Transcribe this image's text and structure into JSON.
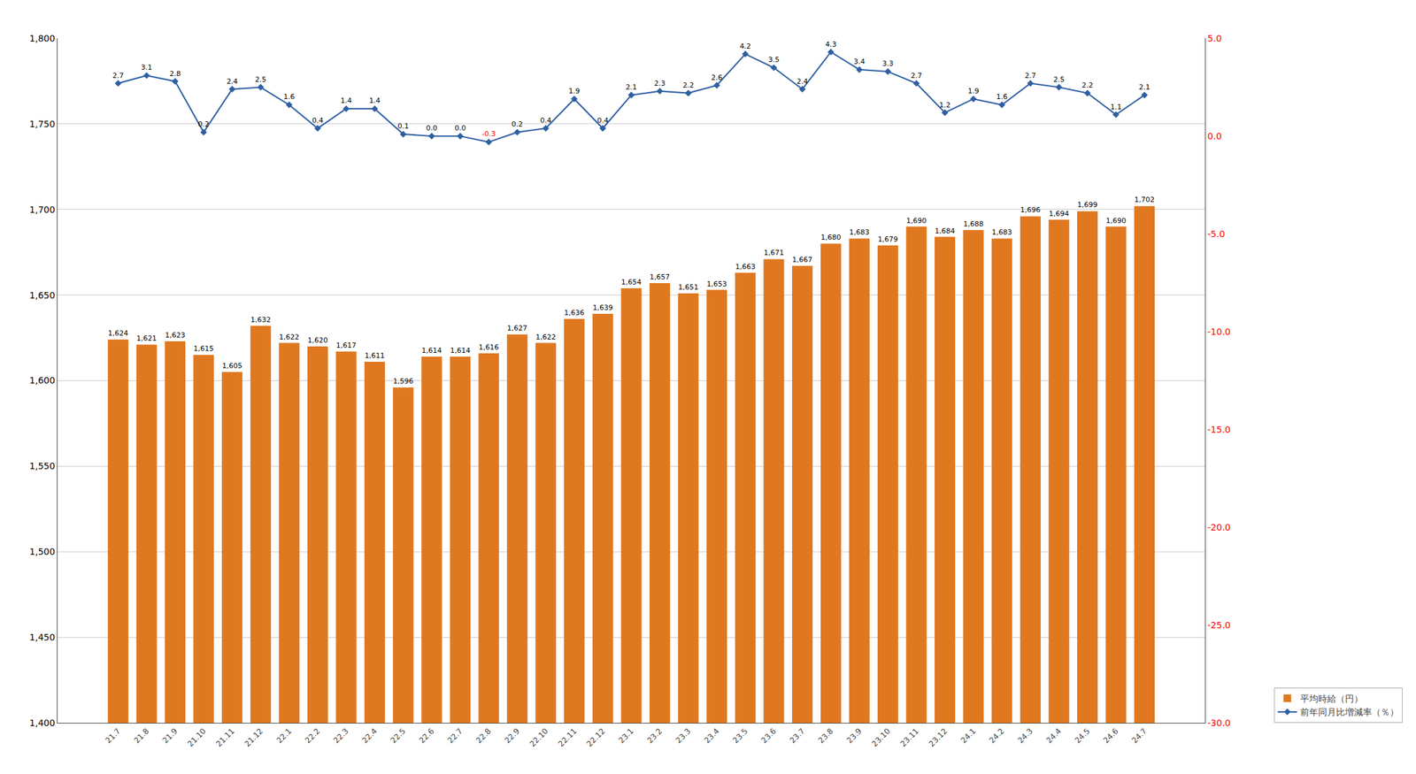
{
  "chart_data": {
    "type": "bar",
    "categories": [
      "21.7",
      "21.8",
      "21.9",
      "21.10",
      "21.11",
      "21.12",
      "22.1",
      "22.2",
      "22.3",
      "22.4",
      "22.5",
      "22.6",
      "22.7",
      "22.8",
      "22.9",
      "22.10",
      "22.11",
      "22.12",
      "23.1",
      "23.2",
      "23.3",
      "23.4",
      "23.5",
      "23.6",
      "23.7",
      "23.8",
      "23.9",
      "23.10",
      "23.11",
      "23.12",
      "24.1",
      "24.2",
      "24.3",
      "24.4",
      "24.5",
      "24.6",
      "24.7"
    ],
    "series": [
      {
        "name": "平均時給（円）",
        "type": "bar",
        "color": "#E07820",
        "values": [
          1624,
          1621,
          1623,
          1615,
          1605,
          1632,
          1622,
          1620,
          1617,
          1611,
          1596,
          1614,
          1614,
          1616,
          1627,
          1622,
          1636,
          1639,
          1654,
          1657,
          1651,
          1653,
          1663,
          1671,
          1667,
          1680,
          1683,
          1679,
          1690,
          1684,
          1688,
          1683,
          1696,
          1694,
          1699,
          1690,
          1702
        ],
        "value_labels": [
          "1,624",
          "1,621",
          "1,623",
          "1,615",
          "1,605",
          "1,632",
          "1,622",
          "1,620",
          "1,617",
          "1,611",
          "1,596",
          "1,614",
          "1,614",
          "1,616",
          "1,627",
          "1,622",
          "1,636",
          "1,639",
          "1,654",
          "1,657",
          "1,651",
          "1,653",
          "1,663",
          "1,671",
          "1,667",
          "1,680",
          "1,683",
          "1,679",
          "1,690",
          "1,684",
          "1,688",
          "1,683",
          "1,696",
          "1,694",
          "1,699",
          "1,690",
          "1,702"
        ]
      },
      {
        "name": "前年同月比増減率（％）",
        "type": "line",
        "axis": "y2",
        "color": "#2E5FA3",
        "marker": "diamond",
        "values": [
          2.7,
          3.1,
          2.8,
          0.2,
          2.4,
          2.5,
          1.6,
          0.4,
          1.4,
          1.4,
          0.1,
          0.0,
          0.0,
          -0.3,
          0.2,
          0.4,
          1.9,
          0.4,
          2.1,
          2.3,
          2.2,
          2.6,
          4.2,
          3.5,
          2.4,
          4.3,
          3.4,
          3.3,
          2.7,
          1.2,
          1.9,
          1.6,
          2.7,
          2.5,
          2.2,
          1.1,
          2.1
        ],
        "value_labels": [
          "2.7",
          "3.1",
          "2.8",
          "0.2",
          "2.4",
          "2.5",
          "1.6",
          "0.4",
          "1.4",
          "1.4",
          "0.1",
          "0.0",
          "0.0",
          "-0.3",
          "0.2",
          "0.4",
          "1.9",
          "0.4",
          "2.1",
          "2.3",
          "2.2",
          "2.6",
          "4.2",
          "3.5",
          "2.4",
          "4.3",
          "3.4",
          "3.3",
          "2.7",
          "1.2",
          "1.9",
          "1.6",
          "2.7",
          "2.5",
          "2.2",
          "1.1",
          "2.1"
        ]
      }
    ],
    "ylim": [
      1400,
      1800
    ],
    "yticks": [
      {
        "value": 1400,
        "label": "1,400"
      },
      {
        "value": 1450,
        "label": "1,450"
      },
      {
        "value": 1500,
        "label": "1,500"
      },
      {
        "value": 1550,
        "label": "1,550"
      },
      {
        "value": 1600,
        "label": "1,600"
      },
      {
        "value": 1650,
        "label": "1,650"
      },
      {
        "value": 1700,
        "label": "1,700"
      },
      {
        "value": 1750,
        "label": "1,750"
      },
      {
        "value": 1800,
        "label": "1,800"
      }
    ],
    "y2lim": [
      -30,
      5
    ],
    "y2ticks": [
      {
        "value": -30,
        "label": "-30.0"
      },
      {
        "value": -25,
        "label": "-25.0"
      },
      {
        "value": -20,
        "label": "-20.0"
      },
      {
        "value": -15,
        "label": "-15.0"
      },
      {
        "value": -10,
        "label": "-10.0"
      },
      {
        "value": -5,
        "label": "-5.0"
      },
      {
        "value": 0,
        "label": "0.0"
      },
      {
        "value": 5,
        "label": "5.0"
      }
    ],
    "grid": true,
    "legend": "lower right",
    "data_labels": true
  }
}
